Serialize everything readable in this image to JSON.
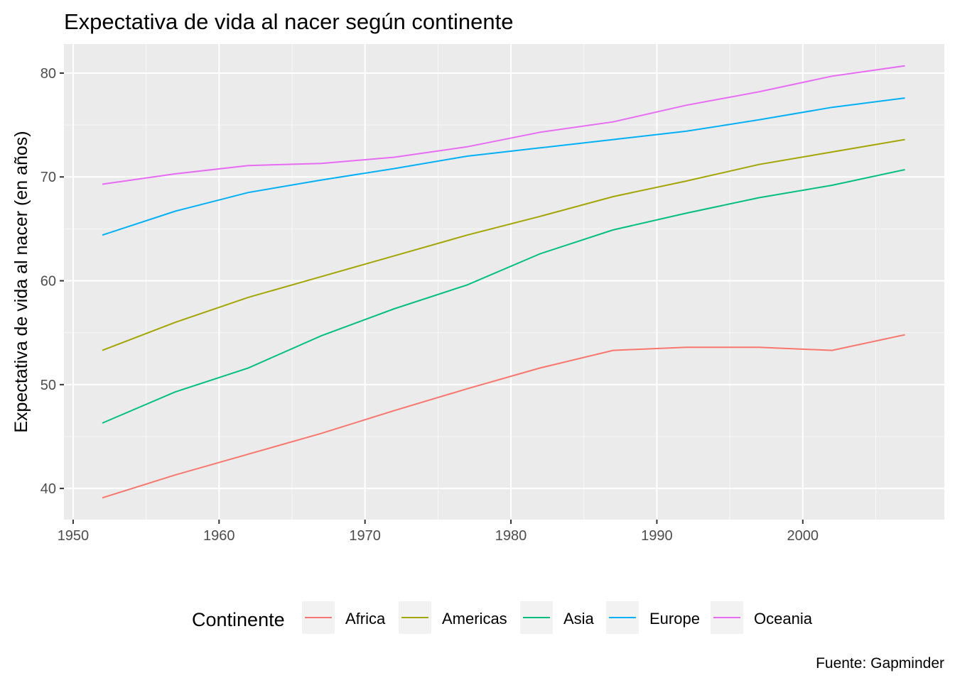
{
  "chart_data": {
    "type": "line",
    "title": "Expectativa de vida al nacer según continente",
    "xlabel": "",
    "ylabel": "Expectativa de vida al nacer (en años)",
    "caption": "Fuente: Gapminder",
    "legend_title": "Continente",
    "legend_position": "bottom",
    "grid": true,
    "xlim": [
      1949.37,
      2009.7
    ],
    "ylim": [
      37.0,
      82.8
    ],
    "x_ticks": [
      1950,
      1960,
      1970,
      1980,
      1990,
      2000
    ],
    "y_ticks": [
      40,
      50,
      60,
      70,
      80
    ],
    "x": [
      1952,
      1957,
      1962,
      1967,
      1972,
      1977,
      1982,
      1987,
      1992,
      1997,
      2002,
      2007
    ],
    "series": [
      {
        "name": "Africa",
        "color": "#F8766D",
        "values": [
          39.1,
          41.3,
          43.3,
          45.3,
          47.5,
          49.6,
          51.6,
          53.3,
          53.6,
          53.6,
          53.3,
          54.8
        ]
      },
      {
        "name": "Americas",
        "color": "#A3A500",
        "values": [
          53.3,
          56.0,
          58.4,
          60.4,
          62.4,
          64.4,
          66.2,
          68.1,
          69.6,
          71.2,
          72.4,
          73.6
        ]
      },
      {
        "name": "Asia",
        "color": "#00BF7D",
        "values": [
          46.3,
          49.3,
          51.6,
          54.7,
          57.3,
          59.6,
          62.6,
          64.9,
          66.5,
          68.0,
          69.2,
          70.7
        ]
      },
      {
        "name": "Europe",
        "color": "#00B0F6",
        "values": [
          64.4,
          66.7,
          68.5,
          69.7,
          70.8,
          72.0,
          72.8,
          73.6,
          74.4,
          75.5,
          76.7,
          77.6
        ]
      },
      {
        "name": "Oceania",
        "color": "#E76BF3",
        "values": [
          69.3,
          70.3,
          71.1,
          71.3,
          71.9,
          72.9,
          74.3,
          75.3,
          76.9,
          78.2,
          79.7,
          80.7
        ]
      }
    ]
  }
}
